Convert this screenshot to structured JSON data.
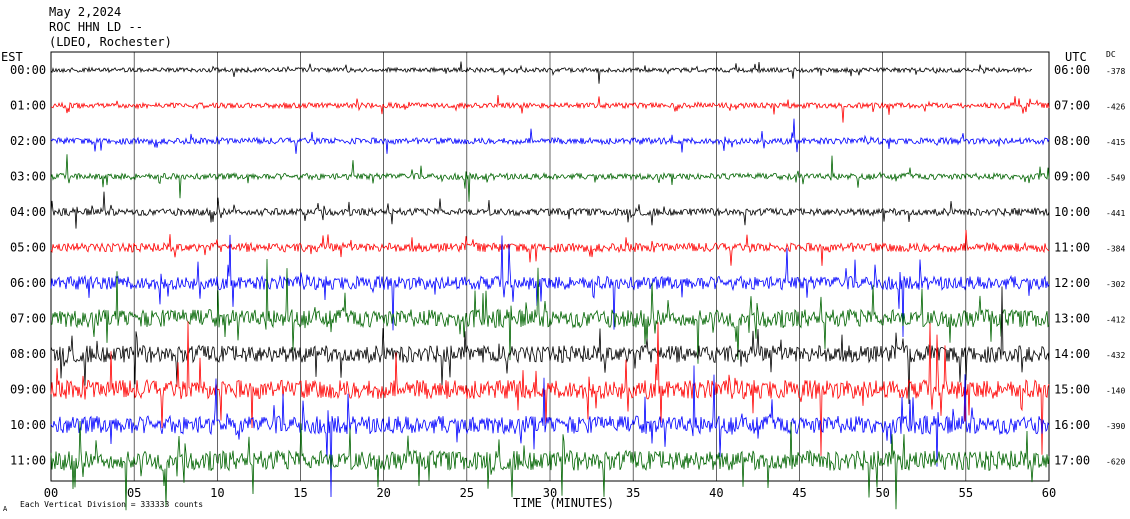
{
  "header": {
    "date": "May 2,2024",
    "station": "ROC HHN LD --",
    "network": "(LDEO, Rochester)"
  },
  "axes": {
    "left_label": "EST",
    "right_label": "UTC",
    "dc_label": "DC",
    "xlabel": "TIME (MINUTES)",
    "footer_note": "Each Vertical Division =  333333 counts",
    "corner_mark": "A"
  },
  "chart_data": {
    "type": "line",
    "title": "May 2,2024",
    "xlabel": "TIME (MINUTES)",
    "x_ticks": [
      "00",
      "05",
      "10",
      "15",
      "20",
      "25",
      "30",
      "35",
      "40",
      "45",
      "50",
      "55",
      "60"
    ],
    "xlim": [
      0,
      60
    ],
    "grid": true,
    "rows": [
      {
        "est": "00:00",
        "utc": "06:00",
        "dc": "-378",
        "color": "#000000",
        "amplitude": 0.25,
        "end_minute": 59
      },
      {
        "est": "01:00",
        "utc": "07:00",
        "dc": "-426",
        "color": "#ff0000",
        "amplitude": 0.3,
        "end_minute": 60
      },
      {
        "est": "02:00",
        "utc": "08:00",
        "dc": "-415",
        "color": "#0000ff",
        "amplitude": 0.35,
        "end_minute": 60
      },
      {
        "est": "03:00",
        "utc": "09:00",
        "dc": "-549",
        "color": "#006400",
        "amplitude": 0.35,
        "end_minute": 60
      },
      {
        "est": "04:00",
        "utc": "10:00",
        "dc": "-441",
        "color": "#000000",
        "amplitude": 0.4,
        "end_minute": 60
      },
      {
        "est": "05:00",
        "utc": "11:00",
        "dc": "-384",
        "color": "#ff0000",
        "amplitude": 0.5,
        "end_minute": 60
      },
      {
        "est": "06:00",
        "utc": "12:00",
        "dc": "-302",
        "color": "#0000ff",
        "amplitude": 0.75,
        "end_minute": 60
      },
      {
        "est": "07:00",
        "utc": "13:00",
        "dc": "-412",
        "color": "#006400",
        "amplitude": 1.0,
        "end_minute": 60
      },
      {
        "est": "08:00",
        "utc": "14:00",
        "dc": "-432",
        "color": "#000000",
        "amplitude": 0.95,
        "end_minute": 60
      },
      {
        "est": "09:00",
        "utc": "15:00",
        "dc": "-140",
        "color": "#ff0000",
        "amplitude": 1.05,
        "end_minute": 60
      },
      {
        "est": "10:00",
        "utc": "16:00",
        "dc": "-390",
        "color": "#0000ff",
        "amplitude": 1.0,
        "end_minute": 60
      },
      {
        "est": "11:00",
        "utc": "17:00",
        "dc": "-620",
        "color": "#006400",
        "amplitude": 1.1,
        "end_minute": 60
      }
    ]
  }
}
